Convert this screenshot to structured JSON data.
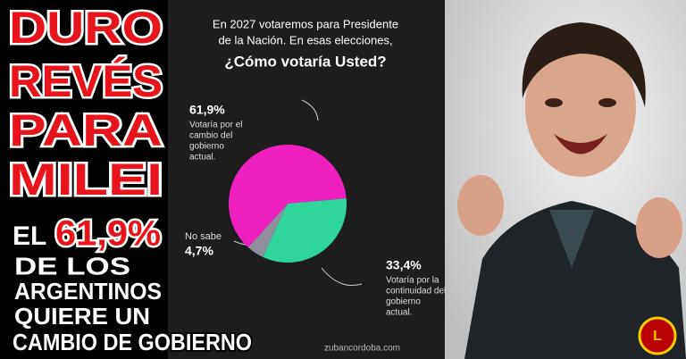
{
  "headline": {
    "lines": [
      "DURO",
      "REVÉS",
      "PARA",
      "MILEI"
    ],
    "el": "EL",
    "percent": "61,9%",
    "rest": [
      "DE LOS",
      "ARGENTINOS",
      "QUIERE UN",
      "CAMBIO DE GOBIERNO"
    ]
  },
  "chart_data": {
    "type": "pie",
    "title_lines": [
      "En 2027 votaremos para Presidente",
      "de la Nación. En esas elecciones,",
      "¿Cómo votaría Usted?"
    ],
    "categories": [
      [
        "Votaría por el",
        "cambio del",
        "gobierno",
        "actual."
      ],
      [
        "Votaría por la",
        "continuidad del",
        "gobierno",
        "actual."
      ],
      [
        "No sabe"
      ]
    ],
    "values": [
      61.9,
      33.4,
      4.7
    ],
    "value_labels": [
      "61,9%",
      "33,4%",
      "4,7%"
    ],
    "colors": [
      "#f020c0",
      "#2fd59b",
      "#8e8e9c"
    ]
  },
  "credit": "zubancordoba.com"
}
